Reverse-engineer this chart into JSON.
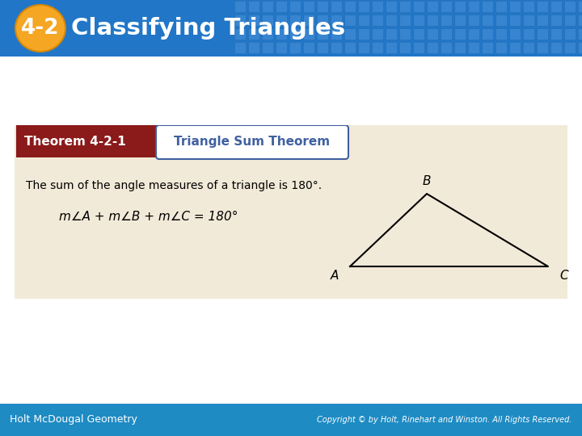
{
  "title_number": "4-2",
  "title_text": "Classifying Triangles",
  "header_bg_color": "#2176C7",
  "header_number_bg": "#F5A623",
  "theorem_label": "Theorem 4-2-1",
  "theorem_title": "Triangle Sum Theorem",
  "theorem_label_bg": "#8B1A1A",
  "box_bg": "#F2EAD8",
  "box_border": "#4060A0",
  "body_text": "The sum of the angle measures of a triangle is 180°.",
  "formula_text": "m∠A + m∠B + m∠C = 180°",
  "footer_bg": "#1E8BC3",
  "footer_left": "Holt McDougal Geometry",
  "footer_right": "Copyright © by Holt, Rinehart and Winston. All Rights Reserved.",
  "bg_color": "#FFFFFF",
  "tile_color": "#3A85CC"
}
